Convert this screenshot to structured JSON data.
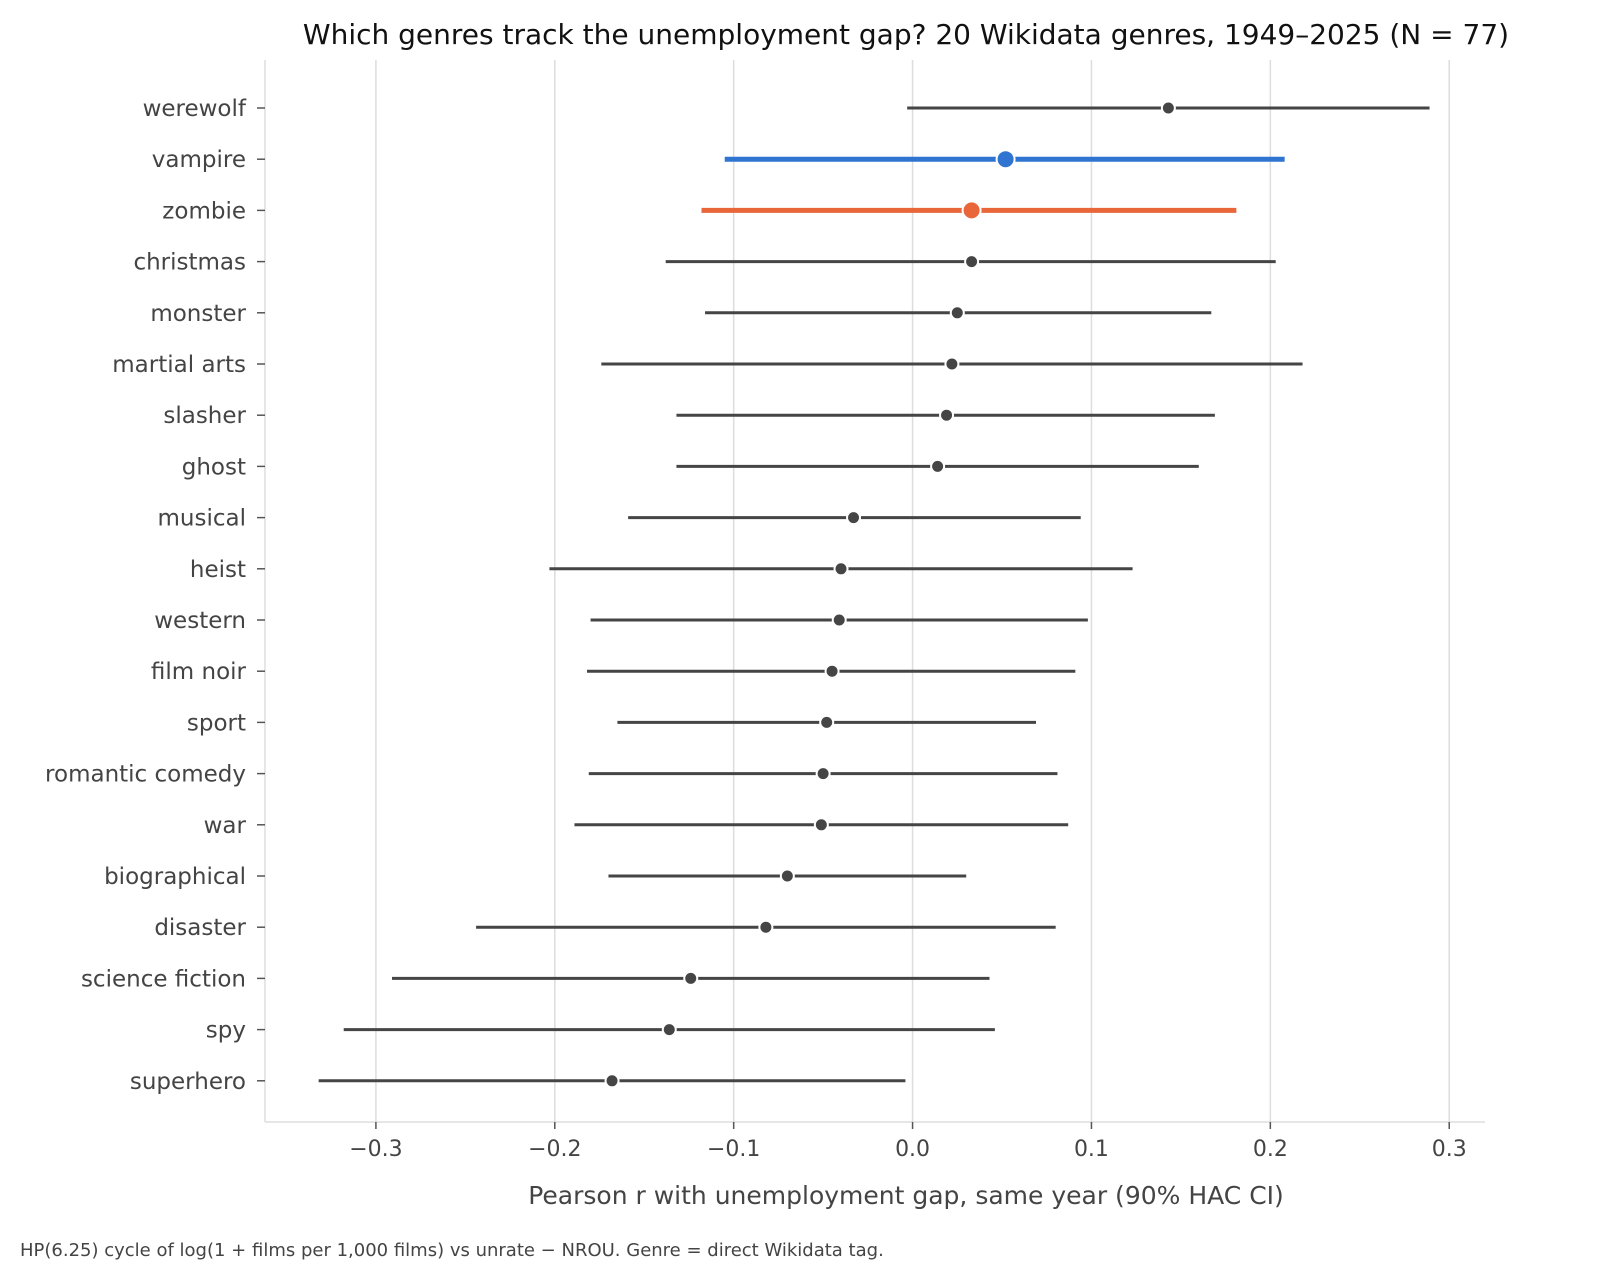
{
  "chart_data": {
    "type": "scatter",
    "title": "Which genres track the unemployment gap? 20 Wikidata genres, 1949–2025 (N = 77)",
    "xlabel": "Pearson r with unemployment gap, same year (90% HAC CI)",
    "ylabel": "",
    "xlim": [
      -0.362,
      0.32
    ],
    "xticks": [
      -0.3,
      -0.2,
      -0.1,
      0.0,
      0.1,
      0.2,
      0.3
    ],
    "xtick_labels": [
      "−0.3",
      "−0.2",
      "−0.1",
      "0.0",
      "0.1",
      "0.2",
      "0.3"
    ],
    "grid": "vertical",
    "colors": {
      "default": "#454545",
      "vampire": "#2f74d0",
      "zombie": "#e8663a",
      "grid": "#dddddd"
    },
    "genres": [
      {
        "name": "werewolf",
        "r": 0.143,
        "lo": -0.003,
        "hi": 0.289,
        "highlight": ""
      },
      {
        "name": "vampire",
        "r": 0.052,
        "lo": -0.105,
        "hi": 0.208,
        "highlight": "vampire"
      },
      {
        "name": "zombie",
        "r": 0.033,
        "lo": -0.118,
        "hi": 0.181,
        "highlight": "zombie"
      },
      {
        "name": "christmas",
        "r": 0.033,
        "lo": -0.138,
        "hi": 0.203,
        "highlight": ""
      },
      {
        "name": "monster",
        "r": 0.025,
        "lo": -0.116,
        "hi": 0.167,
        "highlight": ""
      },
      {
        "name": "martial arts",
        "r": 0.022,
        "lo": -0.174,
        "hi": 0.218,
        "highlight": ""
      },
      {
        "name": "slasher",
        "r": 0.019,
        "lo": -0.132,
        "hi": 0.169,
        "highlight": ""
      },
      {
        "name": "ghost",
        "r": 0.014,
        "lo": -0.132,
        "hi": 0.16,
        "highlight": ""
      },
      {
        "name": "musical",
        "r": -0.033,
        "lo": -0.159,
        "hi": 0.094,
        "highlight": ""
      },
      {
        "name": "heist",
        "r": -0.04,
        "lo": -0.203,
        "hi": 0.123,
        "highlight": ""
      },
      {
        "name": "western",
        "r": -0.041,
        "lo": -0.18,
        "hi": 0.098,
        "highlight": ""
      },
      {
        "name": "film noir",
        "r": -0.045,
        "lo": -0.182,
        "hi": 0.091,
        "highlight": ""
      },
      {
        "name": "sport",
        "r": -0.048,
        "lo": -0.165,
        "hi": 0.069,
        "highlight": ""
      },
      {
        "name": "romantic comedy",
        "r": -0.05,
        "lo": -0.181,
        "hi": 0.081,
        "highlight": ""
      },
      {
        "name": "war",
        "r": -0.051,
        "lo": -0.189,
        "hi": 0.087,
        "highlight": ""
      },
      {
        "name": "biographical",
        "r": -0.07,
        "lo": -0.17,
        "hi": 0.03,
        "highlight": ""
      },
      {
        "name": "disaster",
        "r": -0.082,
        "lo": -0.244,
        "hi": 0.08,
        "highlight": ""
      },
      {
        "name": "science fiction",
        "r": -0.124,
        "lo": -0.291,
        "hi": 0.043,
        "highlight": ""
      },
      {
        "name": "spy",
        "r": -0.136,
        "lo": -0.318,
        "hi": 0.046,
        "highlight": ""
      },
      {
        "name": "superhero",
        "r": -0.168,
        "lo": -0.332,
        "hi": -0.004,
        "highlight": ""
      }
    ]
  },
  "footnote": "HP(6.25) cycle of log(1 + films per 1,000 films) vs unrate − NROU. Genre = direct Wikidata tag."
}
